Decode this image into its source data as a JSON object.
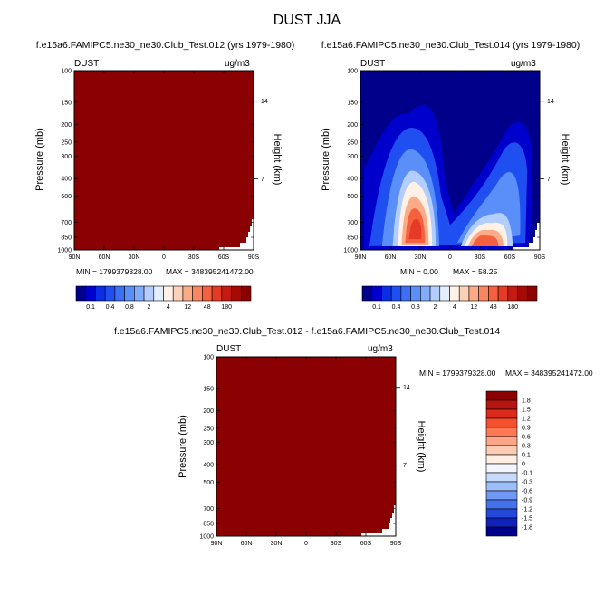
{
  "figure_title": "DUST JJA",
  "colors": {
    "dark_red": "#8b0000",
    "white": "#ffffff",
    "black": "#000000"
  },
  "palette": [
    "#00008b",
    "#0000cd",
    "#0a2ee6",
    "#1f4ff0",
    "#3c6ff5",
    "#5a8ef8",
    "#82acfb",
    "#b3cefd",
    "#e3eefe",
    "#fff1e6",
    "#fdd0b8",
    "#fcab89",
    "#f98561",
    "#f5613f",
    "#e53a25",
    "#c41a12",
    "#a50a06",
    "#8b0000"
  ],
  "chart_data": [
    {
      "type": "heatmap",
      "id": "top-left",
      "title": "f.e15a6.FAMIPC5.ne30_ne30.Club_Test.012 (yrs 1979-1980)",
      "variable": "DUST",
      "units": "ug/m3",
      "xlabel": "",
      "ylabel": "Pressure (mb)",
      "y2label": "Height (km)",
      "x_ticks": [
        "90N",
        "60N",
        "30N",
        "0",
        "30S",
        "60S",
        "90S"
      ],
      "y_ticks": [
        "100",
        "150",
        "200",
        "250",
        "300",
        "400",
        "500",
        "700",
        "850",
        "1000"
      ],
      "y2_ticks": [
        "14",
        "7"
      ],
      "min_label": "MIN = 1799379328.00",
      "max_label": "MAX = 348395241472.00",
      "fill": "saturated-max",
      "colorbar": {
        "orientation": "horizontal",
        "labels": [
          "0.1",
          "0.4",
          "0.8",
          "2",
          "4",
          "12",
          "48",
          "180"
        ]
      }
    },
    {
      "type": "heatmap",
      "id": "top-right",
      "title": "f.e15a6.FAMIPC5.ne30_ne30.Club_Test.014 (yrs 1979-1980)",
      "variable": "DUST",
      "units": "ug/m3",
      "xlabel": "",
      "ylabel": "Pressure (mb)",
      "y2label": "Height (km)",
      "x_ticks": [
        "90N",
        "60N",
        "30N",
        "0",
        "30S",
        "60S",
        "90S"
      ],
      "y_ticks": [
        "100",
        "150",
        "200",
        "250",
        "300",
        "400",
        "500",
        "700",
        "850",
        "1000"
      ],
      "y2_ticks": [
        "14",
        "7"
      ],
      "min_label": "MIN =   0.00",
      "max_label": "MAX =  58.25",
      "fill": "contour",
      "colorbar": {
        "orientation": "horizontal",
        "labels": [
          "0.1",
          "0.4",
          "0.8",
          "2",
          "4",
          "12",
          "48",
          "180"
        ]
      }
    },
    {
      "type": "heatmap",
      "id": "difference",
      "title": "f.e15a6.FAMIPC5.ne30_ne30.Club_Test.012 - f.e15a6.FAMIPC5.ne30_ne30.Club_Test.014",
      "variable": "DUST",
      "units": "ug/m3",
      "xlabel": "",
      "ylabel": "Pressure (mb)",
      "y2label": "Height (km)",
      "x_ticks": [
        "90N",
        "60N",
        "30N",
        "0",
        "30S",
        "60S",
        "90S"
      ],
      "y_ticks": [
        "100",
        "150",
        "200",
        "250",
        "300",
        "400",
        "500",
        "700",
        "850",
        "1000"
      ],
      "y2_ticks": [
        "14",
        "7"
      ],
      "min_label": "MIN = 1799379328.00",
      "max_label": "MAX = 348395241472.00",
      "fill": "saturated-max",
      "colorbar": {
        "orientation": "vertical",
        "labels": [
          "1.8",
          "1.5",
          "1.2",
          "0.9",
          "0.6",
          "0.3",
          "0.1",
          "0",
          "-0.1",
          "-0.3",
          "-0.6",
          "-0.9",
          "-1.2",
          "-1.5",
          "-1.8"
        ]
      }
    }
  ]
}
